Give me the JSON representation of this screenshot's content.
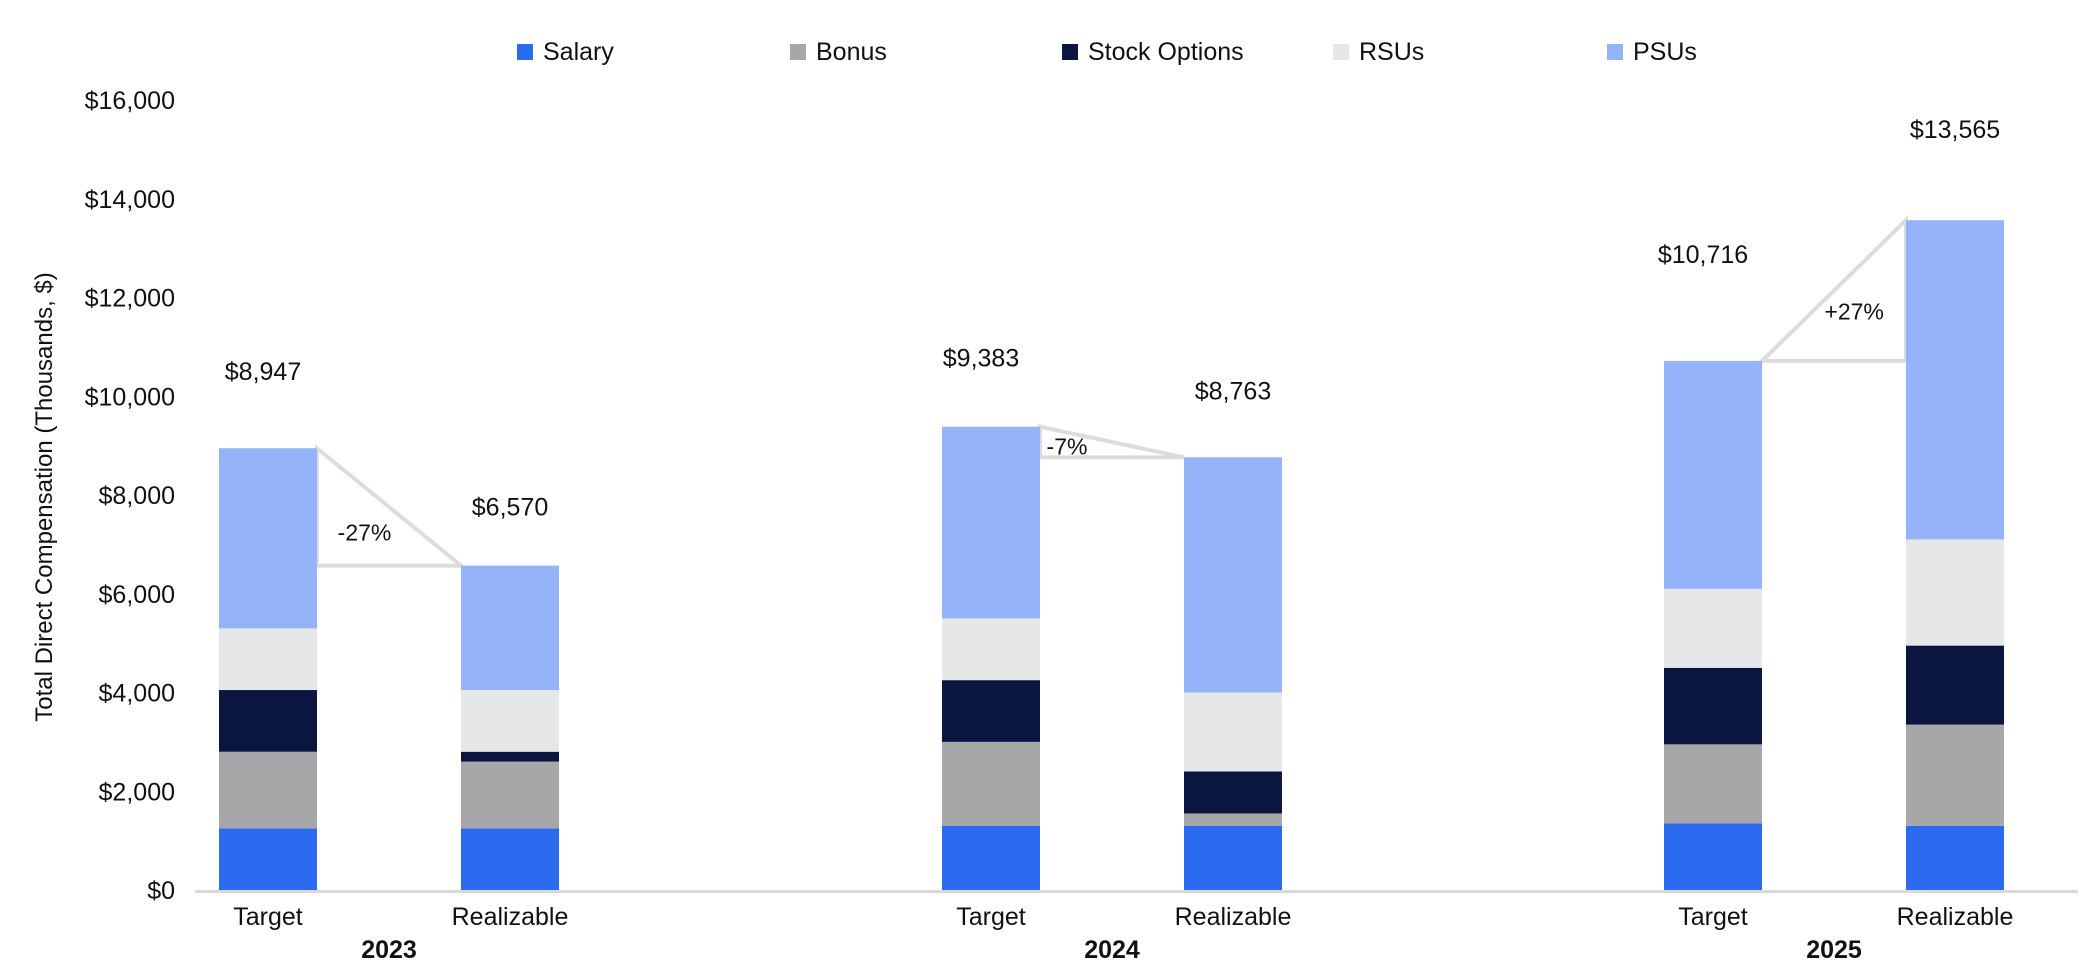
{
  "chart_data": {
    "type": "bar",
    "stacked": true,
    "ylabel": "Total Direct Compensation (Thousands, $)",
    "ylim": [
      0,
      16000
    ],
    "yticks": [
      0,
      2000,
      4000,
      6000,
      8000,
      10000,
      12000,
      14000,
      16000
    ],
    "ytick_labels": [
      "$0",
      "$2,000",
      "$4,000",
      "$6,000",
      "$8,000",
      "$10,000",
      "$12,000",
      "$14,000",
      "$16,000"
    ],
    "legend_position": "top",
    "grid": false,
    "groups": [
      {
        "label": "2023",
        "bars": [
          {
            "label": "Target",
            "total_label": "$8,947"
          },
          {
            "label": "Realizable",
            "total_label": "$6,570"
          }
        ],
        "change_label": "-27%"
      },
      {
        "label": "2024",
        "bars": [
          {
            "label": "Target",
            "total_label": "$9,383"
          },
          {
            "label": "Realizable",
            "total_label": "$8,763"
          }
        ],
        "change_label": "-7%"
      },
      {
        "label": "2025",
        "bars": [
          {
            "label": "Target",
            "total_label": "$10,716"
          },
          {
            "label": "Realizable",
            "total_label": "$13,565"
          }
        ],
        "change_label": "+27%"
      }
    ],
    "series": [
      {
        "name": "Salary",
        "color": "#2b6bf0",
        "values": [
          [
            1250,
            1250
          ],
          [
            1300,
            1300
          ],
          [
            1350,
            1300
          ]
        ]
      },
      {
        "name": "Bonus",
        "color": "#a7a7aa",
        "values": [
          [
            1550,
            1350
          ],
          [
            1700,
            250
          ],
          [
            1600,
            2050
          ]
        ]
      },
      {
        "name": "Stock Options",
        "color": "#0a1540",
        "values": [
          [
            1250,
            200
          ],
          [
            1250,
            850
          ],
          [
            1550,
            1600
          ]
        ]
      },
      {
        "name": "RSUs",
        "color": "#e6e7e9",
        "values": [
          [
            1250,
            1250
          ],
          [
            1250,
            1600
          ],
          [
            1600,
            2150
          ]
        ]
      },
      {
        "name": "PSUs",
        "color": "#95b3f8",
        "values": [
          [
            3647,
            2520
          ],
          [
            3883,
            4763
          ],
          [
            4616,
            6465
          ]
        ]
      }
    ],
    "connector_color": "#dcdcdc"
  }
}
